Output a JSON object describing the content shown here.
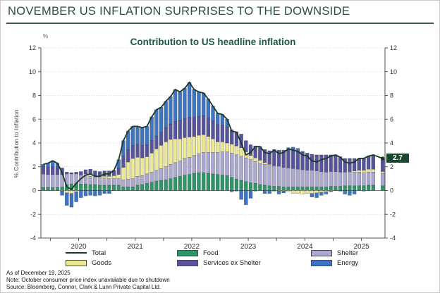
{
  "header": {
    "title": "NOVEMBER US INFLATION SURPRISES TO THE DOWNSIDE"
  },
  "footer": {
    "as_of": "As of December 19, 2025",
    "note": "Note: October consumer price index unavailable due to shutdown",
    "source": "Source: Bloomberg, Connor, Clark & Lunn Private Capital Ltd."
  },
  "legend": {
    "columns": [
      [
        {
          "label": "Total",
          "swatch": "line",
          "color": "#1b3a25"
        },
        {
          "label": "Goods",
          "swatch": "box",
          "color": "#ece894"
        }
      ],
      [
        {
          "label": "Food",
          "swatch": "box",
          "color": "#2f9468"
        },
        {
          "label": "Services ex Shelter",
          "swatch": "box",
          "color": "#57549d"
        }
      ],
      [
        {
          "label": "Shelter",
          "swatch": "box",
          "color": "#aba9d2"
        },
        {
          "label": "Energy",
          "swatch": "box",
          "color": "#3e74c4"
        }
      ]
    ]
  },
  "chart_data": {
    "type": "stacked-bar-with-line",
    "title": "Contribution to US headline inflation",
    "y_unit": "%",
    "ylabel": "% Contribution to Inflation",
    "xlabel": "",
    "ylim": [
      -4,
      12
    ],
    "ytick_step": 2,
    "grid": "dotted horizontal, solid zero line",
    "legend_position": "bottom",
    "x_year_labels": [
      "2020",
      "2021",
      "2022",
      "2023",
      "2024",
      "2025"
    ],
    "annotation": {
      "label": "2.7",
      "value": 2.7,
      "color": "#1a472e"
    },
    "months": [
      "2019-11",
      "2019-12",
      "2020-01",
      "2020-02",
      "2020-03",
      "2020-04",
      "2020-05",
      "2020-06",
      "2020-07",
      "2020-08",
      "2020-09",
      "2020-10",
      "2020-11",
      "2020-12",
      "2021-01",
      "2021-02",
      "2021-03",
      "2021-04",
      "2021-05",
      "2021-06",
      "2021-07",
      "2021-08",
      "2021-09",
      "2021-10",
      "2021-11",
      "2021-12",
      "2022-01",
      "2022-02",
      "2022-03",
      "2022-04",
      "2022-05",
      "2022-06",
      "2022-07",
      "2022-08",
      "2022-09",
      "2022-10",
      "2022-11",
      "2022-12",
      "2023-01",
      "2023-02",
      "2023-03",
      "2023-04",
      "2023-05",
      "2023-06",
      "2023-07",
      "2023-08",
      "2023-09",
      "2023-10",
      "2023-11",
      "2023-12",
      "2024-01",
      "2024-02",
      "2024-03",
      "2024-04",
      "2024-05",
      "2024-06",
      "2024-07",
      "2024-08",
      "2024-09",
      "2024-10",
      "2024-11",
      "2024-12",
      "2025-01",
      "2025-02",
      "2025-03",
      "2025-04",
      "2025-05",
      "2025-06",
      "2025-07",
      "2025-08",
      "2025-09",
      "2025-10",
      "2025-11"
    ],
    "series": [
      {
        "name": "food",
        "label": "Food",
        "color": "#2f9468",
        "values": [
          0.25,
          0.25,
          0.25,
          0.25,
          0.3,
          0.5,
          0.55,
          0.6,
          0.55,
          0.55,
          0.5,
          0.5,
          0.45,
          0.45,
          0.45,
          0.45,
          0.45,
          0.3,
          0.3,
          0.3,
          0.45,
          0.5,
          0.6,
          0.7,
          0.8,
          0.85,
          0.9,
          1.0,
          1.1,
          1.2,
          1.3,
          1.35,
          1.45,
          1.5,
          1.5,
          1.45,
          1.4,
          1.35,
          1.3,
          1.25,
          1.1,
          0.95,
          0.85,
          0.75,
          0.65,
          0.6,
          0.5,
          0.45,
          0.4,
          0.35,
          0.35,
          0.3,
          0.3,
          0.3,
          0.3,
          0.3,
          0.3,
          0.3,
          0.3,
          0.3,
          0.3,
          0.35,
          0.35,
          0.35,
          0.4,
          0.4,
          0.4,
          0.4,
          0.4,
          0.45,
          0.45,
          null,
          0.4
        ]
      },
      {
        "name": "shelter",
        "label": "Shelter",
        "color": "#aba9d2",
        "values": [
          1.1,
          1.1,
          1.1,
          1.1,
          1.05,
          0.9,
          0.85,
          0.8,
          0.75,
          0.75,
          0.7,
          0.65,
          0.65,
          0.6,
          0.55,
          0.55,
          0.55,
          0.6,
          0.65,
          0.7,
          0.75,
          0.75,
          0.8,
          0.85,
          0.9,
          1.0,
          1.1,
          1.2,
          1.25,
          1.3,
          1.4,
          1.45,
          1.5,
          1.6,
          1.7,
          1.75,
          1.8,
          1.85,
          1.95,
          2.0,
          2.05,
          2.05,
          2.05,
          2.0,
          1.95,
          1.85,
          1.8,
          1.75,
          1.7,
          1.7,
          1.7,
          1.65,
          1.6,
          1.55,
          1.5,
          1.45,
          1.4,
          1.4,
          1.35,
          1.3,
          1.25,
          1.25,
          1.25,
          1.2,
          1.15,
          1.15,
          1.15,
          1.15,
          1.1,
          1.1,
          1.1,
          null,
          1.05
        ]
      },
      {
        "name": "goods",
        "label": "Goods",
        "color": "#ece894",
        "values": [
          0.05,
          0.0,
          0.0,
          0.0,
          -0.05,
          -0.2,
          -0.25,
          -0.1,
          0.0,
          0.1,
          0.15,
          0.1,
          0.1,
          0.15,
          0.2,
          0.25,
          0.35,
          1.05,
          1.45,
          1.7,
          1.6,
          1.5,
          1.45,
          1.6,
          1.8,
          1.95,
          2.1,
          2.1,
          2.0,
          1.85,
          1.75,
          1.7,
          1.6,
          1.55,
          1.5,
          1.35,
          1.15,
          0.9,
          0.85,
          0.75,
          0.75,
          0.75,
          0.7,
          0.5,
          0.35,
          0.3,
          0.25,
          0.15,
          0.1,
          0.05,
          -0.05,
          -0.05,
          -0.1,
          -0.25,
          -0.25,
          -0.3,
          -0.25,
          -0.25,
          -0.2,
          -0.15,
          -0.1,
          -0.05,
          0.0,
          0.0,
          0.0,
          0.05,
          0.1,
          0.15,
          0.2,
          0.25,
          0.25,
          null,
          0.15
        ]
      },
      {
        "name": "services-ex-shelter",
        "label": "Services ex Shelter",
        "color": "#57549d",
        "values": [
          0.65,
          0.6,
          0.65,
          0.65,
          0.55,
          0.15,
          0.1,
          0.15,
          0.3,
          0.35,
          0.45,
          0.4,
          0.4,
          0.45,
          0.45,
          0.45,
          0.55,
          0.95,
          1.05,
          1.1,
          1.1,
          1.05,
          1.0,
          1.05,
          1.1,
          1.1,
          1.2,
          1.3,
          1.45,
          1.55,
          1.6,
          1.65,
          1.6,
          1.6,
          1.6,
          1.55,
          1.5,
          1.45,
          1.4,
          1.35,
          1.2,
          1.2,
          1.15,
          0.95,
          0.9,
          1.0,
          1.15,
          1.1,
          1.15,
          1.35,
          1.35,
          1.45,
          1.55,
          1.55,
          1.5,
          1.45,
          1.35,
          1.35,
          1.35,
          1.4,
          1.45,
          1.4,
          1.4,
          1.3,
          1.15,
          1.1,
          1.05,
          1.0,
          1.05,
          1.05,
          1.1,
          null,
          0.95
        ]
      },
      {
        "name": "energy",
        "label": "Energy",
        "color": "#3e74c4",
        "values": [
          0.15,
          0.35,
          0.5,
          0.3,
          -0.35,
          -1.05,
          -1.15,
          -0.85,
          -0.6,
          -0.45,
          -0.4,
          -0.45,
          -0.4,
          -0.25,
          -0.25,
          0.0,
          0.7,
          1.3,
          1.55,
          1.6,
          1.5,
          1.5,
          1.55,
          2.0,
          2.2,
          2.1,
          2.2,
          2.3,
          2.7,
          2.4,
          2.55,
          2.95,
          2.35,
          2.05,
          1.9,
          1.6,
          1.25,
          0.95,
          0.9,
          0.65,
          -0.1,
          -0.05,
          -0.75,
          -1.2,
          -0.65,
          -0.05,
          0.0,
          -0.25,
          -0.25,
          -0.05,
          -0.25,
          -0.15,
          0.15,
          0.25,
          0.25,
          0.1,
          0.1,
          -0.3,
          -0.4,
          -0.25,
          -0.2,
          -0.05,
          0.0,
          -0.05,
          -0.3,
          -0.4,
          -0.3,
          0.0,
          -0.05,
          0.05,
          0.1,
          null,
          0.15
        ]
      }
    ],
    "total": {
      "name": "total",
      "label": "Total",
      "color": "#1b3a25",
      "values": [
        2.2,
        2.3,
        2.5,
        2.3,
        1.5,
        0.3,
        0.1,
        0.6,
        1.0,
        1.3,
        1.4,
        1.2,
        1.2,
        1.4,
        1.4,
        1.7,
        2.6,
        4.2,
        5.0,
        5.4,
        5.4,
        5.3,
        5.4,
        6.2,
        6.8,
        7.0,
        7.5,
        7.9,
        8.5,
        8.3,
        8.6,
        9.1,
        8.5,
        8.3,
        8.2,
        7.7,
        7.1,
        6.5,
        6.4,
        6.0,
        5.0,
        4.9,
        4.0,
        3.0,
        3.2,
        3.7,
        3.7,
        3.2,
        3.1,
        3.4,
        3.1,
        3.2,
        3.5,
        3.4,
        3.3,
        3.0,
        2.9,
        2.5,
        2.4,
        2.6,
        2.7,
        2.9,
        3.0,
        2.8,
        2.4,
        2.3,
        2.4,
        2.7,
        2.7,
        2.9,
        3.0,
        null,
        2.7
      ]
    }
  }
}
